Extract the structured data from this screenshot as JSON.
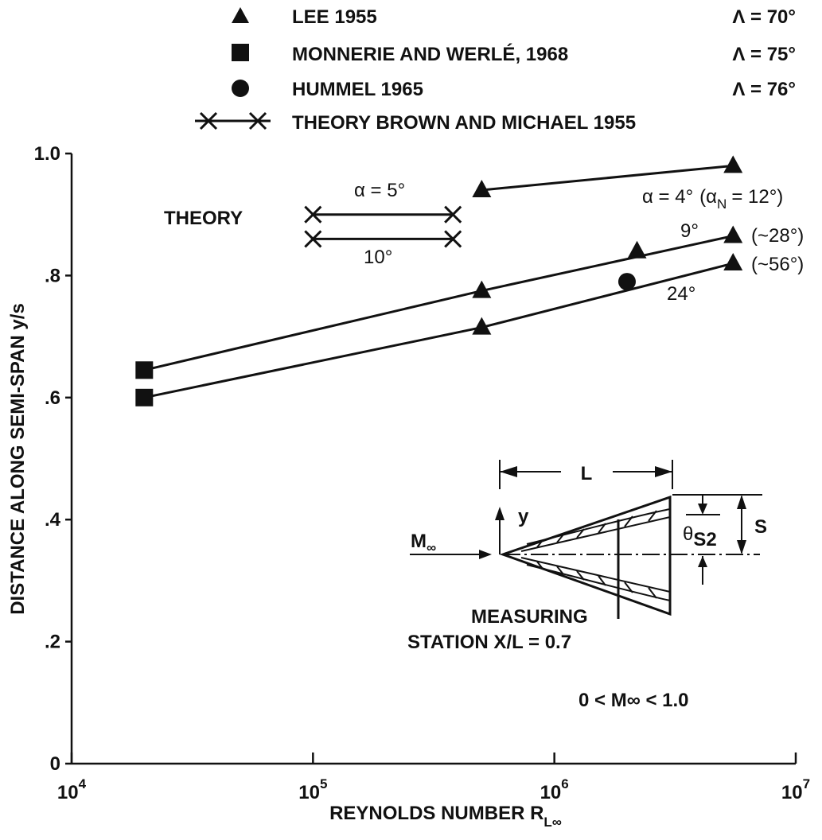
{
  "chart_data": {
    "type": "scatter",
    "x_scale": "log",
    "xlabel": "REYNOLDS NUMBER R",
    "xlabel_sub": "L∞",
    "ylabel": "DISTANCE ALONG SEMI-SPAN y/s",
    "xlim": [
      10000,
      10000000
    ],
    "ylim": [
      0,
      1.0
    ],
    "x_ticks": [
      {
        "value": 10000,
        "base": "10",
        "exp": "4"
      },
      {
        "value": 100000,
        "base": "10",
        "exp": "5"
      },
      {
        "value": 1000000,
        "base": "10",
        "exp": "6"
      },
      {
        "value": 10000000,
        "base": "10",
        "exp": "7"
      }
    ],
    "y_ticks": [
      {
        "value": 0,
        "label": "0"
      },
      {
        "value": 0.2,
        "label": ".2"
      },
      {
        "value": 0.4,
        "label": ".4"
      },
      {
        "value": 0.6,
        "label": ".6"
      },
      {
        "value": 0.8,
        "label": ".8"
      },
      {
        "value": 1.0,
        "label": "1.0"
      }
    ],
    "legend": {
      "placement": "top",
      "entries": [
        {
          "marker": "triangle",
          "label": "LEE 1955",
          "sweep": "Λ = 70°"
        },
        {
          "marker": "square",
          "label": "MONNERIE AND WERLÉ, 1968",
          "sweep": "Λ = 75°"
        },
        {
          "marker": "circle",
          "label": "HUMMEL 1965",
          "sweep": "Λ = 76°"
        },
        {
          "marker": "x-line",
          "label": "THEORY BROWN AND MICHAEL 1955",
          "sweep": ""
        }
      ]
    },
    "series": [
      {
        "marker": "triangle",
        "points": [
          {
            "x": 500000,
            "y": 0.94
          },
          {
            "x": 5500000,
            "y": 0.98
          }
        ]
      },
      {
        "marker": "triangle",
        "points": [
          {
            "x": 500000,
            "y": 0.775
          },
          {
            "x": 2200000,
            "y": 0.84
          },
          {
            "x": 5500000,
            "y": 0.865
          }
        ]
      },
      {
        "marker": "triangle",
        "points": [
          {
            "x": 500000,
            "y": 0.715
          },
          {
            "x": 5500000,
            "y": 0.82
          }
        ]
      },
      {
        "marker": "square",
        "points": [
          {
            "x": 20000,
            "y": 0.645
          },
          {
            "x": 20000,
            "y": 0.6
          }
        ]
      },
      {
        "marker": "circle",
        "points": [
          {
            "x": 2000000,
            "y": 0.79
          }
        ]
      }
    ],
    "lines": [
      {
        "points": [
          {
            "x": 500000,
            "y": 0.94
          },
          {
            "x": 5500000,
            "y": 0.98
          }
        ]
      },
      {
        "points": [
          {
            "x": 20000,
            "y": 0.645
          },
          {
            "x": 500000,
            "y": 0.775
          },
          {
            "x": 5500000,
            "y": 0.865
          }
        ]
      },
      {
        "points": [
          {
            "x": 20000,
            "y": 0.6
          },
          {
            "x": 500000,
            "y": 0.715
          },
          {
            "x": 5500000,
            "y": 0.82
          }
        ]
      }
    ],
    "theory_lines": [
      {
        "points": [
          {
            "x": 100000,
            "y": 0.9
          },
          {
            "x": 380000,
            "y": 0.9
          }
        ]
      },
      {
        "points": [
          {
            "x": 100000,
            "y": 0.86
          },
          {
            "x": 380000,
            "y": 0.86
          }
        ]
      }
    ],
    "annotations": {
      "theory": "THEORY",
      "alpha5": "α = 5°",
      "deg10": "10°",
      "alpha4_a": "α = 4°",
      "alpha4_b": "(α",
      "alpha4_sub": "N",
      "alpha4_c": "= 12°)",
      "deg9": "9°",
      "paren28": "(~28°)",
      "paren56": "(~56°)",
      "deg24": "24°",
      "measuring_1": "MEASURING",
      "measuring_2": "STATION X/L = 0.7",
      "mach_range": "0 < M∞ < 1.0"
    },
    "inset": {
      "mach": "M",
      "mach_sub": "∞",
      "y": "y",
      "L": "L",
      "S": "S",
      "theta": "θ",
      "theta_sub": "S2"
    }
  }
}
